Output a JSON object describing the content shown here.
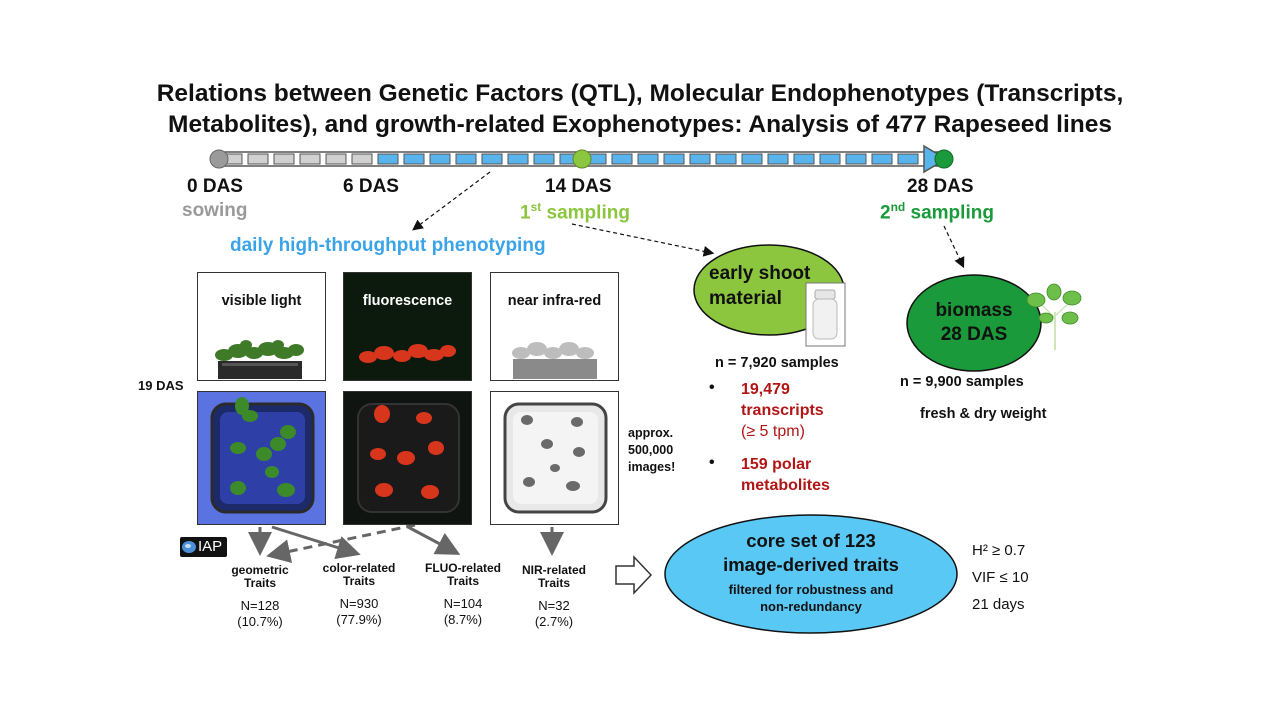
{
  "title": {
    "line1": "Relations between Genetic Factors (QTL), Molecular Endophenotypes (Transcripts,",
    "line2": "Metabolites), and growth-related Exophenotypes: Analysis of 477 Rapeseed lines"
  },
  "timeline": {
    "d0": "0 DAS",
    "sowing": "sowing",
    "d6": "6 DAS",
    "d14": "14 DAS",
    "s1_num": "1",
    "s1_sup": "st",
    "s1_rest": " sampling",
    "d28": "28 DAS",
    "s2_num": "2",
    "s2_sup": "nd",
    "s2_rest": " sampling",
    "colors": {
      "grey": "#cfcfcf",
      "blue": "#5ab4ec",
      "green_light": "#8cc63f",
      "green_dark": "#1a9a3a"
    }
  },
  "phenotyping": {
    "heading": "daily high-throughput phenotyping",
    "panels": [
      "visible light",
      "fluorescence",
      "near infra-red"
    ],
    "day_label": "19 DAS",
    "approx": [
      "approx.",
      "500,000",
      "images!"
    ],
    "iap_label": "IAP"
  },
  "traits": [
    {
      "name1": "geometric",
      "name2": "Traits",
      "n": "N=128",
      "pct": "(10.7%)"
    },
    {
      "name1": "color-related",
      "name2": "Traits",
      "n": "N=930",
      "pct": "(77.9%)"
    },
    {
      "name1": "FLUO-related",
      "name2": "Traits",
      "n": "N=104",
      "pct": "(8.7%)"
    },
    {
      "name1": "NIR-related",
      "name2": "Traits",
      "n": "N=32",
      "pct": "(2.7%)"
    }
  ],
  "core_set": {
    "line1": "core set of 123",
    "line2": "image-derived traits",
    "line3": "filtered for robustness and",
    "line4": "non-redundancy",
    "criteria": [
      "H² ≥ 0.7",
      "VIF ≤ 10",
      "21 days"
    ]
  },
  "early_shoot": {
    "line1": "early shoot",
    "line2": "material",
    "samples": "n = 7,920 samples",
    "transcripts1": "19,479",
    "transcripts2": "transcripts",
    "transcripts3": "(≥ 5 tpm)",
    "metabolites1": "159 polar",
    "metabolites2": "metabolites"
  },
  "biomass": {
    "line1": "biomass",
    "line2": "28 DAS",
    "samples": "n = 9,900 samples",
    "weight": "fresh & dry weight"
  }
}
